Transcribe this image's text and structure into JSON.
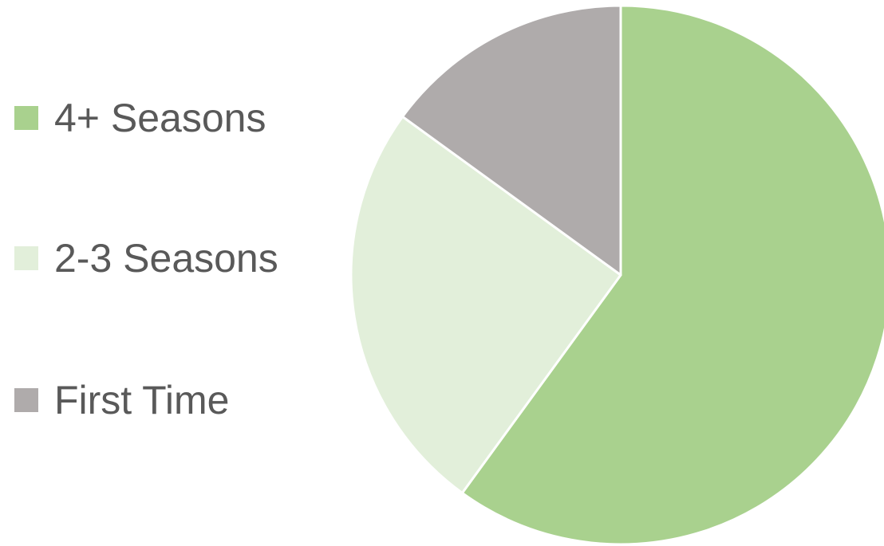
{
  "chart_data": {
    "type": "pie",
    "categories": [
      "4+ Seasons",
      "2-3 Seasons",
      "First Time"
    ],
    "values": [
      60,
      25,
      15
    ],
    "colors": [
      "#A9D18E",
      "#E2EFDA",
      "#AFABAB"
    ],
    "start_angle_deg": 0,
    "direction": "clockwise",
    "legend_position": "left",
    "title": ""
  }
}
